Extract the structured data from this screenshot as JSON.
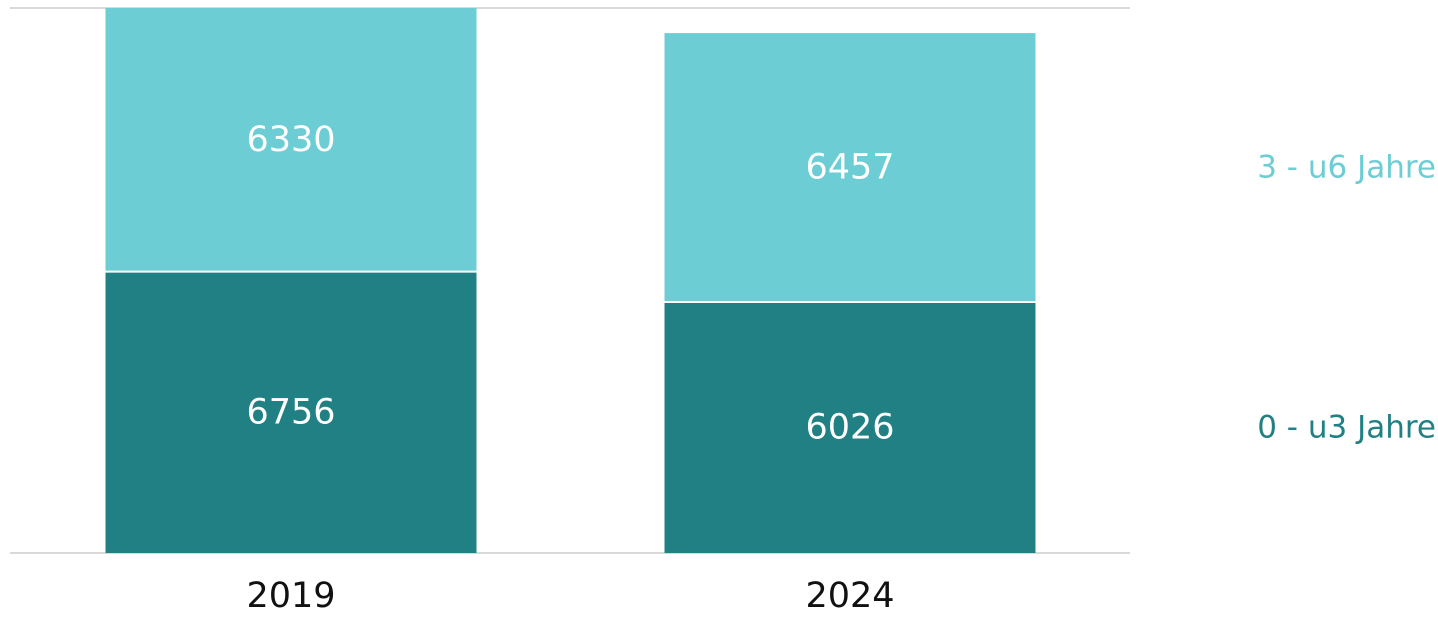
{
  "chart_data": {
    "type": "bar",
    "stacked": true,
    "categories": [
      "2019",
      "2024"
    ],
    "series": [
      {
        "name": "0 - u3 Jahre",
        "values": [
          6756,
          6026
        ],
        "color": "#218084"
      },
      {
        "name": "3 - u6 Jahre",
        "values": [
          6330,
          6457
        ],
        "color": "#6dcdd4"
      }
    ],
    "data_labels": true,
    "legend": "right",
    "ylim": [
      0,
      13086
    ],
    "grid": false,
    "title": "",
    "xlabel": "",
    "ylabel": ""
  },
  "colors": {
    "gridline": "#d9d9d9",
    "tick_text": "#111111",
    "bar_text": "#ffffff"
  }
}
